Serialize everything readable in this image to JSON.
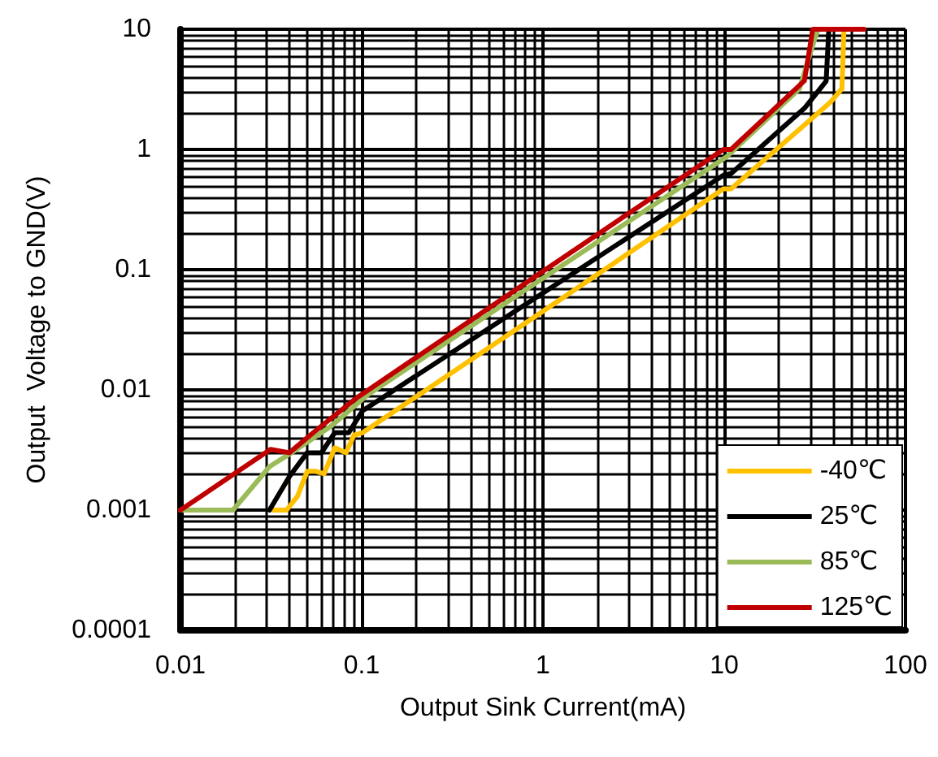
{
  "chart_data": {
    "type": "line",
    "xlabel": "Output Sink Current(mA)",
    "ylabel": "Output  Voltage to GND(V)",
    "log": "xy",
    "xlim": [
      0.01,
      100
    ],
    "ylim": [
      0.0001,
      10
    ],
    "xticks": [
      0.01,
      0.1,
      1,
      10,
      100
    ],
    "yticks": [
      0.0001,
      0.001,
      0.01,
      0.1,
      1,
      10
    ],
    "grid": true,
    "legend": "bottom right",
    "marker": "none",
    "line_style": "solid",
    "series": [
      {
        "name": "-40℃",
        "color": "#ffc000",
        "x": [
          0.0324,
          0.0385,
          0.0442,
          0.05,
          0.056,
          0.062,
          0.071,
          0.082,
          0.0906,
          0.101,
          1,
          9.9,
          10.9,
          26,
          38.8,
          44.6,
          45.7,
          45.7
        ],
        "values": [
          0.001,
          0.001,
          0.0013,
          0.0021,
          0.0021,
          0.002,
          0.0033,
          0.003,
          0.0042,
          0.0044,
          0.045,
          0.47,
          0.47,
          1.47,
          2.5,
          3.2,
          9.5,
          10
        ]
      },
      {
        "name": "25℃",
        "color": "#000000",
        "x": [
          0.031,
          0.0399,
          0.05,
          0.06,
          0.071,
          0.0848,
          0.101,
          1,
          9.9,
          10.9,
          27.7,
          36.5,
          37.7,
          37.7
        ],
        "values": [
          0.001,
          0.0019,
          0.003,
          0.003,
          0.0044,
          0.0044,
          0.0067,
          0.064,
          0.61,
          0.63,
          2.2,
          3.7,
          9.5,
          10
        ]
      },
      {
        "name": "85℃",
        "color": "#9bbb59",
        "x": [
          0.01,
          0.0195,
          0.031,
          0.041,
          0.0667,
          0.108,
          1,
          10.3,
          26,
          31.8,
          33
        ],
        "values": [
          0.001,
          0.001,
          0.0023,
          0.003,
          0.0049,
          0.0091,
          0.085,
          0.87,
          3.2,
          8.6,
          10
        ]
      },
      {
        "name": "125℃",
        "color": "#c00000",
        "x": [
          0.01,
          0.0314,
          0.0399,
          0.054,
          0.094,
          1,
          9.9,
          10.9,
          27.7,
          30.8,
          59
        ],
        "values": [
          0.001,
          0.0032,
          0.003,
          0.0044,
          0.0086,
          0.097,
          1.0,
          1.0,
          3.73,
          10,
          10
        ]
      }
    ]
  }
}
